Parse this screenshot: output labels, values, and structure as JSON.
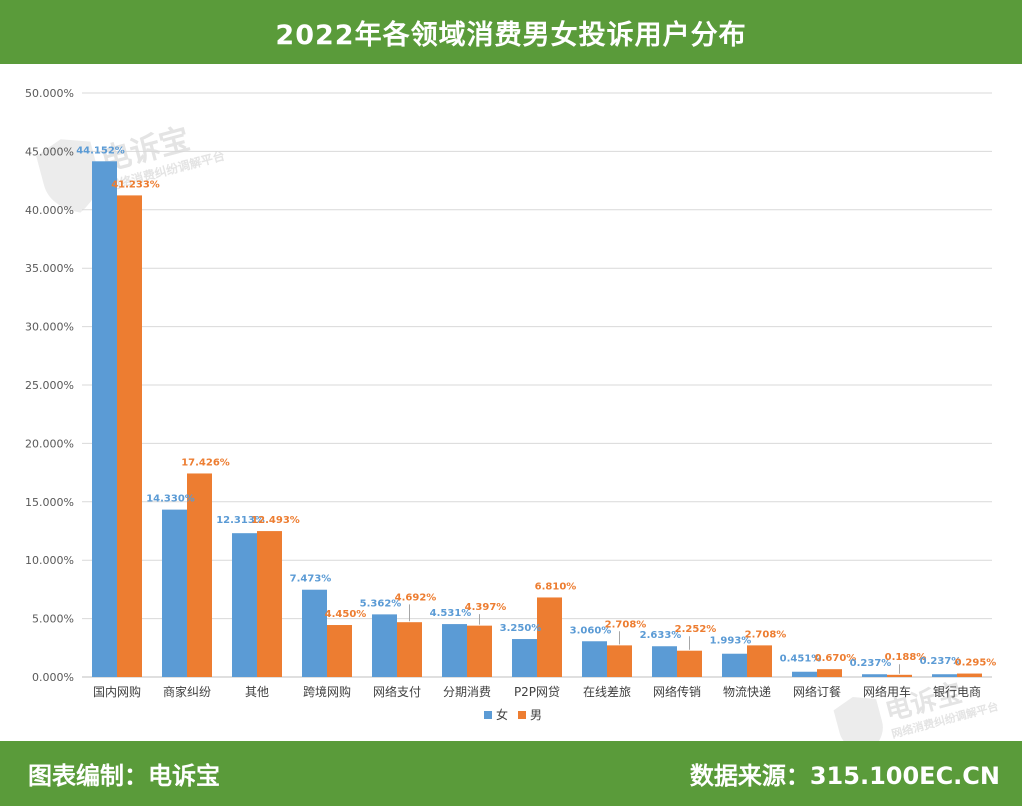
{
  "header": {
    "title": "2022年各领域消费男女投诉用户分布"
  },
  "footer": {
    "left": "图表编制：电诉宝",
    "right": "数据来源：315.100EC.CN"
  },
  "watermark": {
    "brand": "电诉宝",
    "sub": "网络消费纠纷调解平台"
  },
  "colors": {
    "female": "#5b9bd5",
    "male": "#ed7d31",
    "header_bg": "#5a9b3a",
    "grid": "#d9d9d9"
  },
  "chart_data": {
    "type": "bar",
    "title": "",
    "xlabel": "",
    "ylabel": "",
    "ylim": [
      0,
      50
    ],
    "yticks": [
      "0.000%",
      "5.000%",
      "10.000%",
      "15.000%",
      "20.000%",
      "25.000%",
      "30.000%",
      "35.000%",
      "40.000%",
      "45.000%",
      "50.000%"
    ],
    "grid": true,
    "legend": "bottom",
    "categories": [
      "国内网购",
      "商家纠纷",
      "其他",
      "跨境网购",
      "网络支付",
      "分期消费",
      "P2P网贷",
      "在线差旅",
      "网络传销",
      "物流快递",
      "网络订餐",
      "网络用车",
      "银行电商"
    ],
    "series": [
      {
        "name": "女",
        "color": "#5b9bd5",
        "values": [
          44.152,
          14.33,
          12.313,
          7.473,
          5.362,
          4.531,
          3.25,
          3.06,
          2.633,
          1.993,
          0.451,
          0.237,
          0.237
        ],
        "labels": [
          "44.152%",
          "14.330%",
          "12.313%",
          "7.473%",
          "5.362%",
          "4.531%",
          "3.250%",
          "3.060%",
          "2.633%",
          "1.993%",
          "0.451%",
          "0.237%",
          "0.237%"
        ]
      },
      {
        "name": "男",
        "color": "#ed7d31",
        "values": [
          41.233,
          17.426,
          12.493,
          4.45,
          4.692,
          4.397,
          6.81,
          2.708,
          2.252,
          2.708,
          0.67,
          0.188,
          0.295
        ],
        "labels": [
          "41.233%",
          "17.426%",
          "12.493%",
          "4.450%",
          "4.692%",
          "4.397%",
          "6.810%",
          "2.708%",
          "2.252%",
          "2.708%",
          "0.670%",
          "0.188%",
          "0.295%"
        ]
      }
    ]
  }
}
